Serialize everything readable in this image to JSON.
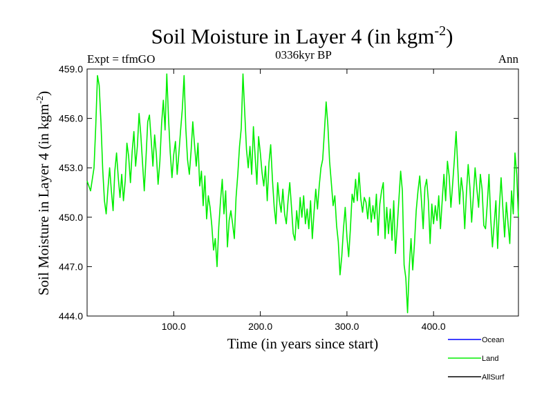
{
  "header": {
    "title_main": "Soil Moisture in Layer 4 (in kgm",
    "title_sup": "-2",
    "title_end": ")",
    "left_label": "Expt = tfmGO",
    "center_label": "0336kyr BP",
    "right_label": "Ann"
  },
  "chart_data": {
    "type": "line",
    "xlabel": "Time (in years since start)",
    "ylabel_main": "Soil Moisture in Layer 4 (in kgm",
    "ylabel_sup": "-2",
    "ylabel_end": ")",
    "xlim": [
      0,
      498
    ],
    "ylim": [
      444.0,
      459.0
    ],
    "x_ticks": [
      100,
      200,
      300,
      400
    ],
    "x_tick_labels": [
      "100.0",
      "200.0",
      "300.0",
      "400.0"
    ],
    "y_ticks": [
      444,
      447,
      450,
      453,
      456,
      459
    ],
    "y_tick_labels": [
      "444.0",
      "447.0",
      "450.0",
      "453.0",
      "456.0",
      "459.0"
    ],
    "legend_position": "bottom-right",
    "series": [
      {
        "name": "Ocean",
        "color": "#0000ff",
        "values": []
      },
      {
        "name": "Land",
        "color": "#00ee00",
        "x": [
          0,
          4,
          8,
          10,
          12,
          14,
          16,
          18,
          20,
          22,
          24,
          26,
          28,
          30,
          32,
          34,
          36,
          38,
          40,
          42,
          44,
          46,
          48,
          50,
          52,
          54,
          56,
          58,
          60,
          62,
          64,
          66,
          68,
          70,
          72,
          74,
          76,
          78,
          80,
          82,
          84,
          86,
          88,
          90,
          92,
          94,
          96,
          98,
          100,
          102,
          104,
          106,
          108,
          110,
          112,
          114,
          116,
          118,
          120,
          122,
          124,
          126,
          128,
          130,
          132,
          134,
          136,
          138,
          140,
          142,
          144,
          146,
          148,
          150,
          152,
          154,
          156,
          158,
          160,
          162,
          164,
          166,
          168,
          170,
          172,
          174,
          176,
          178,
          180,
          182,
          184,
          186,
          188,
          190,
          192,
          194,
          196,
          198,
          200,
          202,
          204,
          206,
          208,
          210,
          212,
          214,
          216,
          218,
          220,
          222,
          224,
          226,
          228,
          230,
          232,
          234,
          236,
          238,
          240,
          242,
          244,
          246,
          248,
          250,
          252,
          254,
          256,
          258,
          260,
          262,
          264,
          266,
          268,
          270,
          272,
          274,
          276,
          278,
          280,
          282,
          284,
          286,
          288,
          290,
          292,
          294,
          296,
          298,
          300,
          302,
          304,
          306,
          308,
          310,
          312,
          314,
          316,
          318,
          320,
          322,
          324,
          326,
          328,
          330,
          332,
          334,
          336,
          338,
          340,
          342,
          344,
          346,
          348,
          350,
          352,
          354,
          356,
          358,
          360,
          362,
          364,
          366,
          368,
          370,
          372,
          374,
          376,
          378,
          380,
          382,
          384,
          386,
          388,
          390,
          392,
          394,
          396,
          398,
          400,
          402,
          404,
          406,
          408,
          410,
          412,
          414,
          416,
          418,
          420,
          422,
          424,
          426,
          428,
          430,
          432,
          434,
          436,
          438,
          440,
          442,
          444,
          446,
          448,
          450,
          452,
          454,
          456,
          458,
          460,
          462,
          464,
          466,
          468,
          470,
          472,
          474,
          476,
          478,
          480,
          482,
          484,
          486,
          488,
          490,
          492,
          494,
          496,
          498
        ],
        "values": [
          452.2,
          451.6,
          453.0,
          455.5,
          458.6,
          458.0,
          455.8,
          452.9,
          451.0,
          450.2,
          451.7,
          453.0,
          451.6,
          450.4,
          452.8,
          453.9,
          452.4,
          451.2,
          452.6,
          451.0,
          452.2,
          454.5,
          453.7,
          452.1,
          454.0,
          455.2,
          453.1,
          454.3,
          456.3,
          455.0,
          453.3,
          451.6,
          453.6,
          455.8,
          456.2,
          454.7,
          453.1,
          455.0,
          453.8,
          452.0,
          453.4,
          455.7,
          457.1,
          455.3,
          458.7,
          456.0,
          453.9,
          452.4,
          453.8,
          454.6,
          452.6,
          453.9,
          455.3,
          456.6,
          458.6,
          455.4,
          453.5,
          452.6,
          454.0,
          455.8,
          454.4,
          453.1,
          454.5,
          451.9,
          452.8,
          450.7,
          452.5,
          449.9,
          451.3,
          450.6,
          449.5,
          448.0,
          448.7,
          447.0,
          449.4,
          451.0,
          452.3,
          450.2,
          451.6,
          448.2,
          449.8,
          450.4,
          449.6,
          448.7,
          451.2,
          452.6,
          454.3,
          455.4,
          458.7,
          456.4,
          454.1,
          453.0,
          454.3,
          452.6,
          455.5,
          453.7,
          452.0,
          454.9,
          453.9,
          452.7,
          451.9,
          453.1,
          451.0,
          453.3,
          454.4,
          452.3,
          450.6,
          449.6,
          452.1,
          451.0,
          450.3,
          451.7,
          450.2,
          449.6,
          451.0,
          452.1,
          450.6,
          449.0,
          448.6,
          450.4,
          449.3,
          451.2,
          450.0,
          451.3,
          449.6,
          450.5,
          449.3,
          451.0,
          448.7,
          450.3,
          451.7,
          450.5,
          451.9,
          453.0,
          453.5,
          455.2,
          457.0,
          455.6,
          453.4,
          452.1,
          450.7,
          451.3,
          449.5,
          448.5,
          446.5,
          447.6,
          449.3,
          450.6,
          448.8,
          447.6,
          449.3,
          451.4,
          450.9,
          452.3,
          451.0,
          452.7,
          451.1,
          450.3,
          451.2,
          450.9,
          449.9,
          451.2,
          449.7,
          450.7,
          449.9,
          451.4,
          448.9,
          450.8,
          451.6,
          452.1,
          448.7,
          450.6,
          449.0,
          450.5,
          448.6,
          451.0,
          447.8,
          449.4,
          451.1,
          452.8,
          451.6,
          447.1,
          446.3,
          444.2,
          447.0,
          448.7,
          446.8,
          448.4,
          450.4,
          451.6,
          452.5,
          451.0,
          449.3,
          451.8,
          452.3,
          451.0,
          448.4,
          450.8,
          449.6,
          450.7,
          449.8,
          451.3,
          449.3,
          451.0,
          452.6,
          451.0,
          453.4,
          452.5,
          450.6,
          452.0,
          453.5,
          455.2,
          453.0,
          450.8,
          452.4,
          451.5,
          449.3,
          451.5,
          453.2,
          451.8,
          449.7,
          451.3,
          453.0,
          451.7,
          450.6,
          452.6,
          451.7,
          449.5,
          449.3,
          450.8,
          452.6,
          449.9,
          448.2,
          449.6,
          451.0,
          448.1,
          450.6,
          452.4,
          450.6,
          448.8,
          450.9,
          449.6,
          448.4,
          451.6,
          450.2,
          453.9,
          452.6,
          450.0
        ]
      },
      {
        "name": "AllSurf",
        "color": "#000000",
        "values": []
      }
    ]
  }
}
